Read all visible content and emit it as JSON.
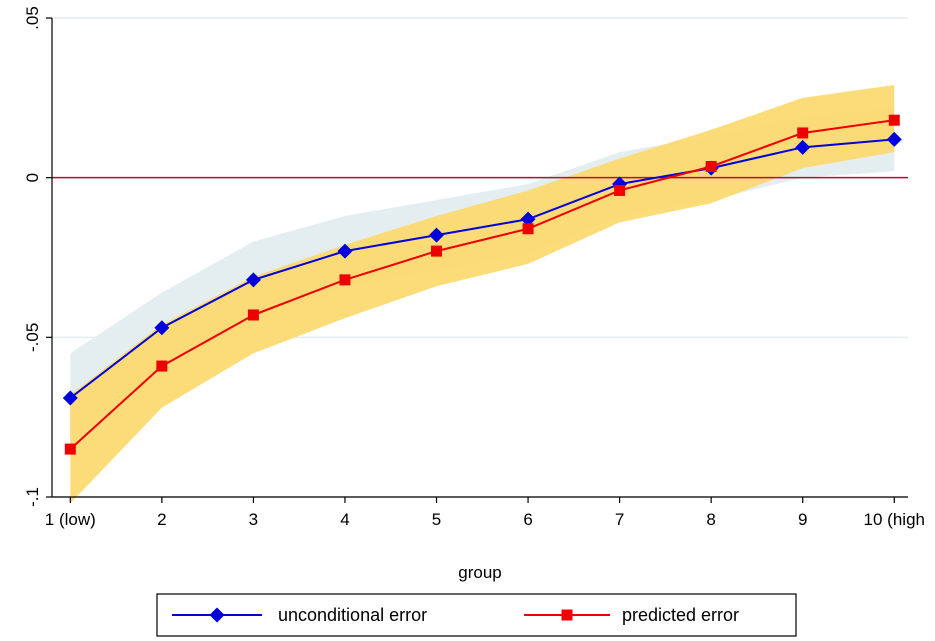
{
  "chart_data": {
    "type": "line",
    "x": [
      1,
      2,
      3,
      4,
      5,
      6,
      7,
      8,
      9,
      10
    ],
    "categories": [
      "1 (low)",
      "2",
      "3",
      "4",
      "5",
      "6",
      "7",
      "8",
      "9",
      "10 (high"
    ],
    "xlabel": "group",
    "ylabel": "",
    "ylim": [
      -0.1,
      0.05
    ],
    "yticks": [
      -0.1,
      -0.05,
      0,
      0.05
    ],
    "ytick_labels": [
      "-.1",
      "-.05",
      "0",
      ".05"
    ],
    "grid": true,
    "reference_line": {
      "y": 0,
      "color": "#b0103a"
    },
    "legend_position": "bottom",
    "series": [
      {
        "name": "unconditional error",
        "color": "#0000dd",
        "marker": "diamond",
        "values": [
          -0.069,
          -0.047,
          -0.032,
          -0.023,
          -0.018,
          -0.013,
          -0.002,
          0.003,
          0.0095,
          0.012
        ],
        "band_lower": [
          -0.083,
          -0.058,
          -0.043,
          -0.034,
          -0.029,
          -0.024,
          -0.012,
          -0.007,
          0.0,
          0.002
        ],
        "band_upper": [
          -0.055,
          -0.036,
          -0.02,
          -0.012,
          -0.007,
          -0.002,
          0.008,
          0.013,
          0.019,
          0.022
        ],
        "band_color": "#e4eef0"
      },
      {
        "name": "predicted error",
        "color": "#ee0000",
        "marker": "square",
        "values": [
          -0.085,
          -0.059,
          -0.043,
          -0.032,
          -0.023,
          -0.016,
          -0.004,
          0.0035,
          0.014,
          0.018
        ],
        "band_lower": [
          -0.102,
          -0.072,
          -0.055,
          -0.044,
          -0.034,
          -0.027,
          -0.014,
          -0.008,
          0.003,
          0.008
        ],
        "band_upper": [
          -0.068,
          -0.046,
          -0.031,
          -0.021,
          -0.012,
          -0.004,
          0.006,
          0.015,
          0.025,
          0.029
        ],
        "band_color": "#fcd86a"
      }
    ]
  }
}
